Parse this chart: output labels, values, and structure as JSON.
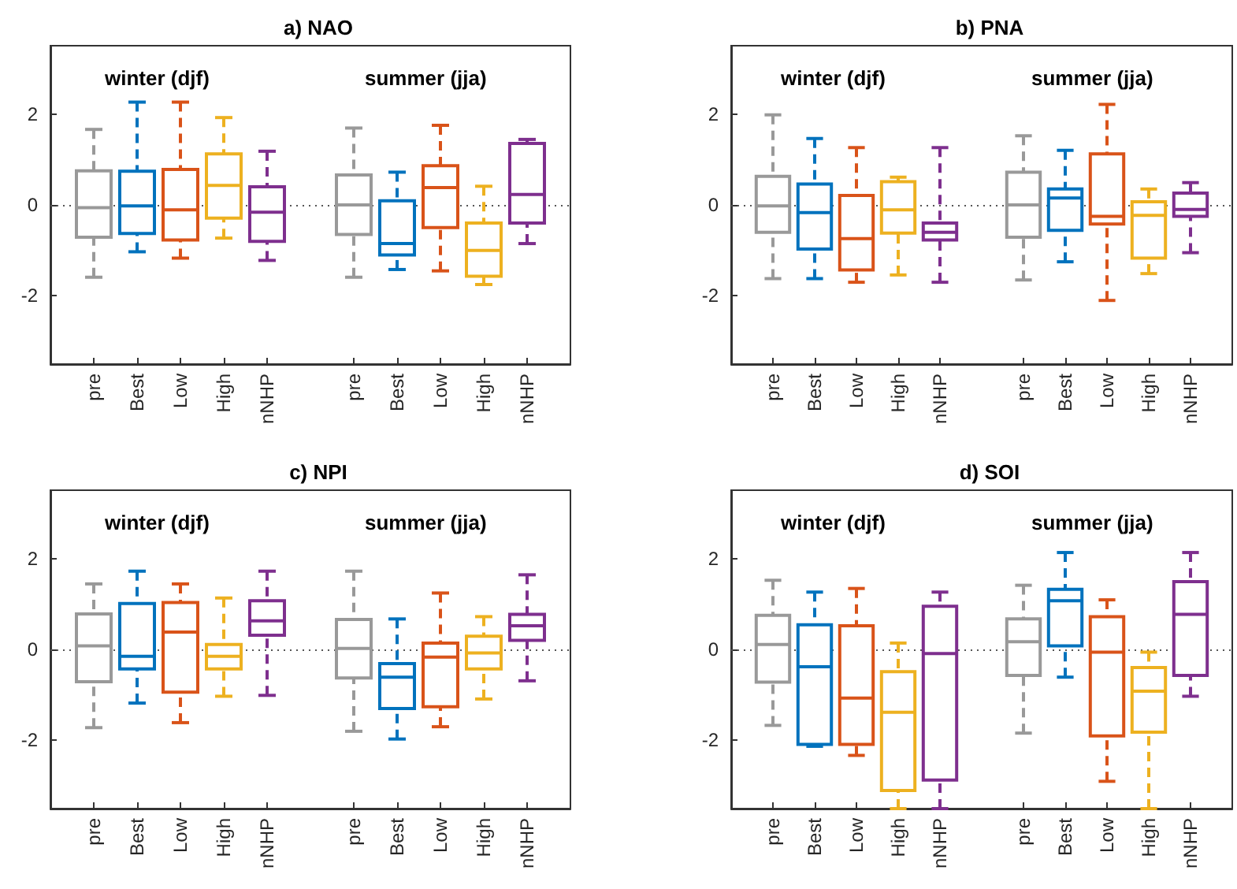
{
  "chart_data": [
    {
      "type": "box",
      "title": "a) NAO",
      "annotations": [
        "winter (djf)",
        "summer (jja)"
      ],
      "categories": [
        null,
        "pre",
        "Best",
        "Low",
        "High",
        "nNHP",
        null,
        "pre",
        "Best",
        "Low",
        "High",
        "nNHP",
        null
      ],
      "colors": [
        null,
        "#999999",
        "#0072bd",
        "#d95319",
        "#edb120",
        "#7e2f8e",
        null,
        "#999999",
        "#0072bd",
        "#d95319",
        "#edb120",
        "#7e2f8e",
        null
      ],
      "boxes": [
        null,
        {
          "low": -1.59,
          "q1": -0.71,
          "median": -0.06,
          "q3": 0.75,
          "high": 1.66
        },
        {
          "low": -1.03,
          "q1": -0.63,
          "median": -0.02,
          "q3": 0.74,
          "high": 2.26
        },
        {
          "low": -1.17,
          "q1": -0.77,
          "median": -0.11,
          "q3": 0.78,
          "high": 2.26
        },
        {
          "low": -0.73,
          "q1": -0.29,
          "median": 0.43,
          "q3": 1.12,
          "high": 1.92
        },
        {
          "low": -1.22,
          "q1": -0.8,
          "median": -0.16,
          "q3": 0.4,
          "high": 1.18
        },
        null,
        {
          "low": -1.59,
          "q1": -0.65,
          "median": 0,
          "q3": 0.66,
          "high": 1.69
        },
        {
          "low": -1.42,
          "q1": -1.1,
          "median": -0.85,
          "q3": 0.09,
          "high": 0.72
        },
        {
          "low": -1.45,
          "q1": -0.5,
          "median": 0.38,
          "q3": 0.86,
          "high": 1.75
        },
        {
          "low": -1.75,
          "q1": -1.57,
          "median": -1.0,
          "q3": -0.4,
          "high": 0.41
        },
        {
          "low": -0.85,
          "q1": -0.4,
          "median": 0.23,
          "q3": 1.35,
          "high": 1.44
        },
        null
      ],
      "ylim": [
        -3.5,
        3.5
      ],
      "yticks": [
        -2,
        0,
        2
      ],
      "line_style": "dashed",
      "ref_lines": [
        {
          "axis": "y",
          "value": 0,
          "line_style": "dotted",
          "color": "#555555"
        }
      ]
    },
    {
      "type": "box",
      "title": "b) PNA",
      "annotations": [
        "winter (djf)",
        "summer (jja)"
      ],
      "categories": [
        null,
        "pre",
        "Best",
        "Low",
        "High",
        "nNHP",
        null,
        "pre",
        "Best",
        "Low",
        "High",
        "nNHP",
        null
      ],
      "colors": [
        null,
        "#999999",
        "#0072bd",
        "#d95319",
        "#edb120",
        "#7e2f8e",
        null,
        "#999999",
        "#0072bd",
        "#d95319",
        "#edb120",
        "#7e2f8e",
        null
      ],
      "boxes": [
        null,
        {
          "low": -1.62,
          "q1": -0.6,
          "median": -0.02,
          "q3": 0.63,
          "high": 1.98
        },
        {
          "low": -1.62,
          "q1": -0.97,
          "median": -0.17,
          "q3": 0.46,
          "high": 1.46
        },
        {
          "low": -1.7,
          "q1": -1.43,
          "median": -0.74,
          "q3": 0.21,
          "high": 1.26
        },
        {
          "low": -1.54,
          "q1": -0.62,
          "median": -0.11,
          "q3": 0.51,
          "high": 0.61
        },
        {
          "low": -1.7,
          "q1": -0.77,
          "median": -0.6,
          "q3": -0.4,
          "high": 1.26
        },
        null,
        {
          "low": -1.65,
          "q1": -0.71,
          "median": 0,
          "q3": 0.72,
          "high": 1.52
        },
        {
          "low": -1.25,
          "q1": -0.56,
          "median": 0.15,
          "q3": 0.35,
          "high": 1.2
        },
        {
          "low": -2.1,
          "q1": -0.42,
          "median": -0.25,
          "q3": 1.12,
          "high": 2.21
        },
        {
          "low": -1.51,
          "q1": -1.17,
          "median": -0.23,
          "q3": 0.07,
          "high": 0.35
        },
        {
          "low": -1.05,
          "q1": -0.25,
          "median": -0.1,
          "q3": 0.26,
          "high": 0.49
        },
        null
      ],
      "ylim": [
        -3.5,
        3.5
      ],
      "yticks": [
        -2,
        0,
        2
      ],
      "line_style": "dashed",
      "ref_lines": [
        {
          "axis": "y",
          "value": 0,
          "line_style": "dotted",
          "color": "#555555"
        }
      ]
    },
    {
      "type": "box",
      "title": "c) NPI",
      "annotations": [
        "winter (djf)",
        "summer (jja)"
      ],
      "categories": [
        null,
        "pre",
        "Best",
        "Low",
        "High",
        "nNHP",
        null,
        "pre",
        "Best",
        "Low",
        "High",
        "nNHP",
        null
      ],
      "colors": [
        null,
        "#999999",
        "#0072bd",
        "#d95319",
        "#edb120",
        "#7e2f8e",
        null,
        "#999999",
        "#0072bd",
        "#d95319",
        "#edb120",
        "#7e2f8e",
        null
      ],
      "boxes": [
        null,
        {
          "low": -1.72,
          "q1": -0.71,
          "median": 0.08,
          "q3": 0.78,
          "high": 1.44
        },
        {
          "low": -1.18,
          "q1": -0.43,
          "median": -0.15,
          "q3": 1.01,
          "high": 1.72
        },
        {
          "low": -1.61,
          "q1": -0.94,
          "median": 0.38,
          "q3": 1.03,
          "high": 1.44
        },
        {
          "low": -1.03,
          "q1": -0.43,
          "median": -0.15,
          "q3": 0.11,
          "high": 1.13
        },
        {
          "low": -1.01,
          "q1": 0.31,
          "median": 0.63,
          "q3": 1.07,
          "high": 1.72
        },
        null,
        {
          "low": -1.8,
          "q1": -0.63,
          "median": 0.02,
          "q3": 0.66,
          "high": 1.72
        },
        {
          "low": -1.97,
          "q1": -1.3,
          "median": -0.61,
          "q3": -0.31,
          "high": 0.67
        },
        {
          "low": -1.7,
          "q1": -1.26,
          "median": -0.17,
          "q3": 0.14,
          "high": 1.24
        },
        {
          "low": -1.09,
          "q1": -0.43,
          "median": -0.08,
          "q3": 0.29,
          "high": 0.72
        },
        {
          "low": -0.69,
          "q1": 0.2,
          "median": 0.52,
          "q3": 0.77,
          "high": 1.64
        },
        null
      ],
      "ylim": [
        -3.5,
        3.5
      ],
      "yticks": [
        -2,
        0,
        2
      ],
      "line_style": "dashed",
      "ref_lines": [
        {
          "axis": "y",
          "value": 0,
          "line_style": "dotted",
          "color": "#555555"
        }
      ]
    },
    {
      "type": "box",
      "title": "d) SOI",
      "annotations": [
        "winter (djf)",
        "summer (jja)"
      ],
      "categories": [
        null,
        "pre",
        "Best",
        "Low",
        "High",
        "nNHP",
        null,
        "pre",
        "Best",
        "Low",
        "High",
        "nNHP",
        null
      ],
      "colors": [
        null,
        "#999999",
        "#0072bd",
        "#d95319",
        "#edb120",
        "#7e2f8e",
        null,
        "#999999",
        "#0072bd",
        "#d95319",
        "#edb120",
        "#7e2f8e",
        null
      ],
      "boxes": [
        null,
        {
          "low": -1.67,
          "q1": -0.72,
          "median": 0.11,
          "q3": 0.75,
          "high": 1.52
        },
        {
          "low": -2.13,
          "q1": -2.09,
          "median": -0.38,
          "q3": 0.54,
          "high": 1.26
        },
        {
          "low": -2.33,
          "q1": -2.09,
          "median": -1.07,
          "q3": 0.52,
          "high": 1.34
        },
        {
          "low": -3.5,
          "q1": -3.1,
          "median": -1.38,
          "q3": -0.49,
          "high": 0.14
        },
        {
          "low": -3.5,
          "q1": -2.87,
          "median": -0.09,
          "q3": 0.95,
          "high": 1.26
        },
        null,
        {
          "low": -1.84,
          "q1": -0.57,
          "median": 0.17,
          "q3": 0.67,
          "high": 1.41
        },
        {
          "low": -0.61,
          "q1": 0.08,
          "median": 1.07,
          "q3": 1.32,
          "high": 2.13
        },
        {
          "low": -2.9,
          "q1": -1.9,
          "median": -0.06,
          "q3": 0.72,
          "high": 1.09
        },
        {
          "low": -3.5,
          "q1": -1.82,
          "median": -0.92,
          "q3": -0.4,
          "high": -0.06
        },
        {
          "low": -1.03,
          "q1": -0.57,
          "median": 0.77,
          "q3": 1.49,
          "high": 2.13
        },
        null
      ],
      "ylim": [
        -3.5,
        3.5
      ],
      "yticks": [
        -2,
        0,
        2
      ],
      "line_style": "dashed",
      "ref_lines": [
        {
          "axis": "y",
          "value": 0,
          "line_style": "dotted",
          "color": "#555555"
        }
      ]
    }
  ]
}
